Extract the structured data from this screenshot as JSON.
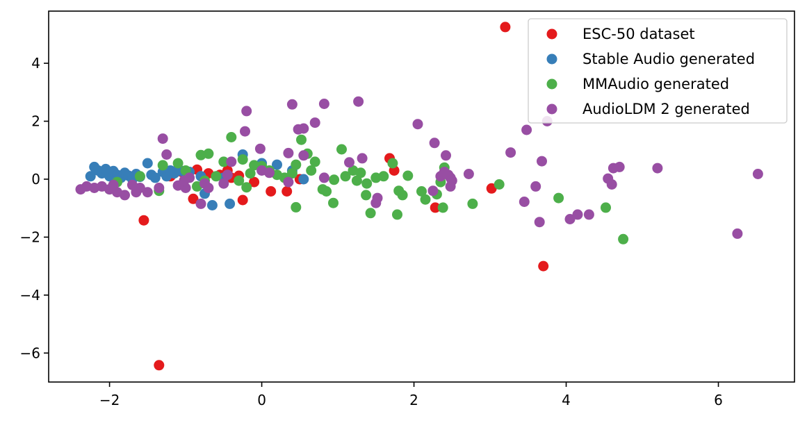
{
  "chart_data": {
    "type": "scatter",
    "title": "",
    "xlabel": "",
    "ylabel": "",
    "xlim": [
      -2.8,
      7.0
    ],
    "ylim": [
      -7.0,
      5.8
    ],
    "xticks": [
      -2,
      0,
      2,
      4,
      6
    ],
    "yticks": [
      -6,
      -4,
      -2,
      0,
      2,
      4
    ],
    "xtick_labels": [
      "−2",
      "0",
      "2",
      "4",
      "6"
    ],
    "ytick_labels": [
      "−6",
      "−4",
      "−2",
      "0",
      "2",
      "4"
    ],
    "grid": false,
    "legend_position": "top-right",
    "series": [
      {
        "name": "ESC-50 dataset",
        "color": "#e41a1c",
        "points": [
          [
            3.2,
            5.25
          ],
          [
            -1.35,
            -6.42
          ],
          [
            3.7,
            -3.0
          ],
          [
            -1.55,
            -1.42
          ],
          [
            1.68,
            0.72
          ],
          [
            1.74,
            0.3
          ],
          [
            3.02,
            -0.32
          ],
          [
            2.28,
            -0.98
          ],
          [
            -0.25,
            -0.72
          ],
          [
            -0.9,
            -0.68
          ],
          [
            -0.85,
            0.33
          ],
          [
            -0.55,
            0.15
          ],
          [
            -0.45,
            0.3
          ],
          [
            -0.4,
            0.05
          ],
          [
            -0.1,
            -0.1
          ],
          [
            0.12,
            -0.42
          ],
          [
            0.33,
            -0.42
          ],
          [
            -0.7,
            0.2
          ],
          [
            -0.3,
            0.12
          ],
          [
            -1.05,
            0.25
          ],
          [
            -1.2,
            0.1
          ],
          [
            0.5,
            0.0
          ]
        ]
      },
      {
        "name": "Stable Audio generated",
        "color": "#377eb8",
        "points": [
          [
            -2.2,
            0.42
          ],
          [
            -2.15,
            0.3
          ],
          [
            -2.1,
            0.2
          ],
          [
            -2.05,
            0.35
          ],
          [
            -2.0,
            0.1
          ],
          [
            -1.95,
            0.28
          ],
          [
            -1.9,
            0.15
          ],
          [
            -1.85,
            0.05
          ],
          [
            -1.8,
            0.22
          ],
          [
            -1.75,
            0.12
          ],
          [
            -1.7,
            0.0
          ],
          [
            -1.65,
            0.18
          ],
          [
            -1.6,
            0.08
          ],
          [
            -1.5,
            0.55
          ],
          [
            -1.45,
            0.15
          ],
          [
            -1.4,
            0.05
          ],
          [
            -1.3,
            0.25
          ],
          [
            -1.25,
            0.1
          ],
          [
            -1.2,
            0.3
          ],
          [
            -1.15,
            0.2
          ],
          [
            -1.1,
            0.35
          ],
          [
            -1.05,
            0.28
          ],
          [
            -0.95,
            0.25
          ],
          [
            -0.75,
            -0.5
          ],
          [
            -0.65,
            -0.9
          ],
          [
            -0.5,
            0.05
          ],
          [
            -0.42,
            -0.85
          ],
          [
            -0.25,
            0.85
          ],
          [
            0.0,
            0.55
          ],
          [
            0.2,
            0.5
          ],
          [
            0.4,
            0.3
          ],
          [
            0.55,
            0.0
          ],
          [
            -2.25,
            0.1
          ],
          [
            -1.92,
            0.0
          ],
          [
            -0.8,
            0.1
          ]
        ]
      },
      {
        "name": "MMAudio generated",
        "color": "#4daf4a",
        "points": [
          [
            4.75,
            -2.07
          ],
          [
            3.9,
            -0.65
          ],
          [
            4.52,
            -0.98
          ],
          [
            2.77,
            -0.85
          ],
          [
            2.38,
            -0.98
          ],
          [
            3.12,
            -0.18
          ],
          [
            1.78,
            -1.22
          ],
          [
            1.43,
            -1.17
          ],
          [
            0.94,
            -0.82
          ],
          [
            0.45,
            -0.97
          ],
          [
            0.52,
            1.36
          ],
          [
            -0.4,
            1.45
          ],
          [
            -0.7,
            0.88
          ],
          [
            -0.8,
            0.83
          ],
          [
            1.05,
            1.03
          ],
          [
            1.3,
            0.22
          ],
          [
            1.5,
            0.05
          ],
          [
            1.6,
            0.1
          ],
          [
            1.72,
            0.55
          ],
          [
            1.8,
            -0.4
          ],
          [
            1.85,
            -0.55
          ],
          [
            1.92,
            0.12
          ],
          [
            2.1,
            -0.42
          ],
          [
            2.15,
            -0.7
          ],
          [
            2.3,
            -0.52
          ],
          [
            2.35,
            -0.1
          ],
          [
            2.4,
            0.4
          ],
          [
            1.2,
            0.3
          ],
          [
            1.1,
            0.1
          ],
          [
            0.95,
            -0.02
          ],
          [
            0.8,
            -0.35
          ],
          [
            0.7,
            0.6
          ],
          [
            0.65,
            0.3
          ],
          [
            0.6,
            0.88
          ],
          [
            0.45,
            0.5
          ],
          [
            0.4,
            0.2
          ],
          [
            0.3,
            0.05
          ],
          [
            0.2,
            0.15
          ],
          [
            0.1,
            0.3
          ],
          [
            0.0,
            0.45
          ],
          [
            -0.1,
            0.48
          ],
          [
            -0.15,
            0.2
          ],
          [
            -0.2,
            -0.28
          ],
          [
            -0.25,
            0.68
          ],
          [
            -0.3,
            -0.05
          ],
          [
            -0.5,
            0.6
          ],
          [
            -0.6,
            0.1
          ],
          [
            -0.75,
            -0.05
          ],
          [
            -0.85,
            -0.25
          ],
          [
            -1.0,
            0.3
          ],
          [
            -1.1,
            0.55
          ],
          [
            -1.3,
            0.48
          ],
          [
            -1.35,
            -0.4
          ],
          [
            -1.6,
            0.1
          ],
          [
            -1.9,
            -0.1
          ],
          [
            -2.0,
            -0.35
          ],
          [
            1.37,
            -0.55
          ],
          [
            1.38,
            -0.15
          ],
          [
            1.25,
            -0.05
          ],
          [
            0.85,
            -0.42
          ]
        ]
      },
      {
        "name": "AudioLDM 2 generated",
        "color": "#984ea3",
        "points": [
          [
            6.52,
            0.18
          ],
          [
            6.25,
            -1.88
          ],
          [
            5.2,
            0.38
          ],
          [
            4.7,
            0.42
          ],
          [
            4.62,
            0.38
          ],
          [
            4.6,
            -0.18
          ],
          [
            4.55,
            0.02
          ],
          [
            4.3,
            -1.22
          ],
          [
            4.15,
            -1.22
          ],
          [
            4.05,
            -1.38
          ],
          [
            3.75,
            2.0
          ],
          [
            3.68,
            0.62
          ],
          [
            3.65,
            -1.48
          ],
          [
            3.6,
            -0.25
          ],
          [
            3.48,
            1.7
          ],
          [
            3.45,
            -0.78
          ],
          [
            3.27,
            0.92
          ],
          [
            2.72,
            0.18
          ],
          [
            2.48,
            -0.25
          ],
          [
            2.48,
            0.05
          ],
          [
            2.45,
            0.15
          ],
          [
            2.42,
            0.82
          ],
          [
            2.27,
            1.25
          ],
          [
            2.25,
            -0.4
          ],
          [
            2.05,
            1.9
          ],
          [
            1.5,
            -0.82
          ],
          [
            1.52,
            -0.65
          ],
          [
            1.32,
            0.72
          ],
          [
            1.27,
            2.68
          ],
          [
            1.15,
            0.58
          ],
          [
            0.82,
            2.6
          ],
          [
            0.82,
            0.05
          ],
          [
            0.7,
            1.95
          ],
          [
            0.55,
            0.82
          ],
          [
            0.55,
            1.75
          ],
          [
            0.48,
            1.72
          ],
          [
            0.4,
            2.58
          ],
          [
            0.35,
            0.9
          ],
          [
            0.35,
            -0.1
          ],
          [
            0.1,
            0.22
          ],
          [
            -0.02,
            1.05
          ],
          [
            -0.2,
            2.35
          ],
          [
            -0.22,
            1.65
          ],
          [
            -0.4,
            0.6
          ],
          [
            -0.45,
            0.15
          ],
          [
            -0.5,
            -0.15
          ],
          [
            -0.7,
            -0.3
          ],
          [
            -0.75,
            -0.15
          ],
          [
            -0.8,
            -0.85
          ],
          [
            -0.95,
            0.05
          ],
          [
            -1.0,
            -0.3
          ],
          [
            -1.1,
            -0.22
          ],
          [
            -1.25,
            0.85
          ],
          [
            -1.3,
            1.4
          ],
          [
            -1.35,
            -0.3
          ],
          [
            -1.5,
            -0.45
          ],
          [
            -1.6,
            -0.3
          ],
          [
            -1.65,
            -0.45
          ],
          [
            -1.7,
            -0.2
          ],
          [
            -1.8,
            -0.55
          ],
          [
            -1.9,
            -0.45
          ],
          [
            -2.0,
            -0.35
          ],
          [
            -2.1,
            -0.25
          ],
          [
            -2.2,
            -0.3
          ],
          [
            -2.3,
            -0.25
          ],
          [
            -2.38,
            -0.35
          ],
          [
            2.5,
            -0.05
          ],
          [
            2.35,
            0.1
          ],
          [
            2.4,
            0.25
          ],
          [
            0.0,
            0.3
          ],
          [
            -1.95,
            -0.2
          ],
          [
            -1.02,
            -0.05
          ]
        ]
      }
    ]
  }
}
